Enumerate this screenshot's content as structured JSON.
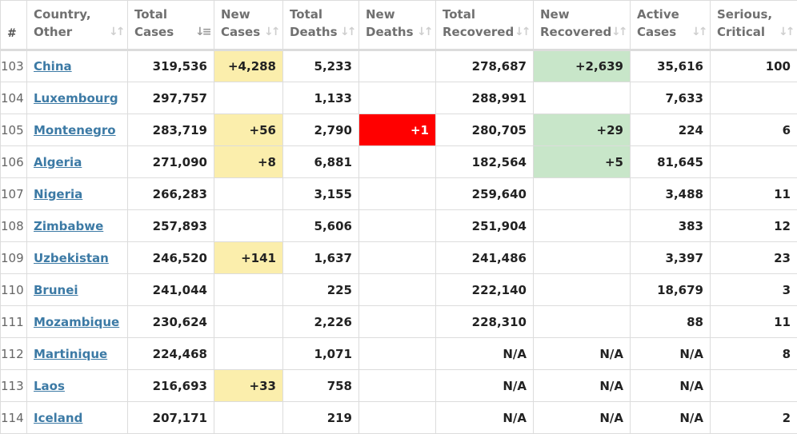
{
  "headers": {
    "idx": "#",
    "country": [
      "Country,",
      "Other"
    ],
    "total_cases": [
      "Total",
      "Cases"
    ],
    "new_cases": [
      "New",
      "Cases"
    ],
    "total_deaths": [
      "Total",
      "Deaths"
    ],
    "new_deaths": [
      "New",
      "Deaths"
    ],
    "total_recovered": [
      "Total",
      "Recovered"
    ],
    "new_recovered": [
      "New",
      "Recovered"
    ],
    "active_cases": [
      "Active",
      "Cases"
    ],
    "serious": [
      "Serious,",
      "Critical"
    ]
  },
  "sort_icons": {
    "inactive": "sort-both-icon",
    "active": "sort-desc-icon"
  },
  "highlight_colors": {
    "new_cases": "#fbeeac",
    "new_deaths": "#ff0000",
    "new_recovered": "#c8e6c9"
  },
  "rows": [
    {
      "idx": "103",
      "country": "China",
      "total_cases": "319,536",
      "new_cases": "+4,288",
      "total_deaths": "5,233",
      "new_deaths": "",
      "total_recovered": "278,687",
      "new_recovered": "+2,639",
      "active_cases": "35,616",
      "serious": "100"
    },
    {
      "idx": "104",
      "country": "Luxembourg",
      "total_cases": "297,757",
      "new_cases": "",
      "total_deaths": "1,133",
      "new_deaths": "",
      "total_recovered": "288,991",
      "new_recovered": "",
      "active_cases": "7,633",
      "serious": ""
    },
    {
      "idx": "105",
      "country": "Montenegro",
      "total_cases": "283,719",
      "new_cases": "+56",
      "total_deaths": "2,790",
      "new_deaths": "+1",
      "total_recovered": "280,705",
      "new_recovered": "+29",
      "active_cases": "224",
      "serious": "6"
    },
    {
      "idx": "106",
      "country": "Algeria",
      "total_cases": "271,090",
      "new_cases": "+8",
      "total_deaths": "6,881",
      "new_deaths": "",
      "total_recovered": "182,564",
      "new_recovered": "+5",
      "active_cases": "81,645",
      "serious": ""
    },
    {
      "idx": "107",
      "country": "Nigeria",
      "total_cases": "266,283",
      "new_cases": "",
      "total_deaths": "3,155",
      "new_deaths": "",
      "total_recovered": "259,640",
      "new_recovered": "",
      "active_cases": "3,488",
      "serious": "11"
    },
    {
      "idx": "108",
      "country": "Zimbabwe",
      "total_cases": "257,893",
      "new_cases": "",
      "total_deaths": "5,606",
      "new_deaths": "",
      "total_recovered": "251,904",
      "new_recovered": "",
      "active_cases": "383",
      "serious": "12"
    },
    {
      "idx": "109",
      "country": "Uzbekistan",
      "total_cases": "246,520",
      "new_cases": "+141",
      "total_deaths": "1,637",
      "new_deaths": "",
      "total_recovered": "241,486",
      "new_recovered": "",
      "active_cases": "3,397",
      "serious": "23"
    },
    {
      "idx": "110",
      "country": "Brunei",
      "total_cases": "241,044",
      "new_cases": "",
      "total_deaths": "225",
      "new_deaths": "",
      "total_recovered": "222,140",
      "new_recovered": "",
      "active_cases": "18,679",
      "serious": "3"
    },
    {
      "idx": "111",
      "country": "Mozambique",
      "total_cases": "230,624",
      "new_cases": "",
      "total_deaths": "2,226",
      "new_deaths": "",
      "total_recovered": "228,310",
      "new_recovered": "",
      "active_cases": "88",
      "serious": "11"
    },
    {
      "idx": "112",
      "country": "Martinique",
      "total_cases": "224,468",
      "new_cases": "",
      "total_deaths": "1,071",
      "new_deaths": "",
      "total_recovered": "N/A",
      "new_recovered": "N/A",
      "active_cases": "N/A",
      "serious": "8"
    },
    {
      "idx": "113",
      "country": "Laos",
      "total_cases": "216,693",
      "new_cases": "+33",
      "total_deaths": "758",
      "new_deaths": "",
      "total_recovered": "N/A",
      "new_recovered": "N/A",
      "active_cases": "N/A",
      "serious": ""
    },
    {
      "idx": "114",
      "country": "Iceland",
      "total_cases": "207,171",
      "new_cases": "",
      "total_deaths": "219",
      "new_deaths": "",
      "total_recovered": "N/A",
      "new_recovered": "N/A",
      "active_cases": "N/A",
      "serious": "2"
    }
  ]
}
